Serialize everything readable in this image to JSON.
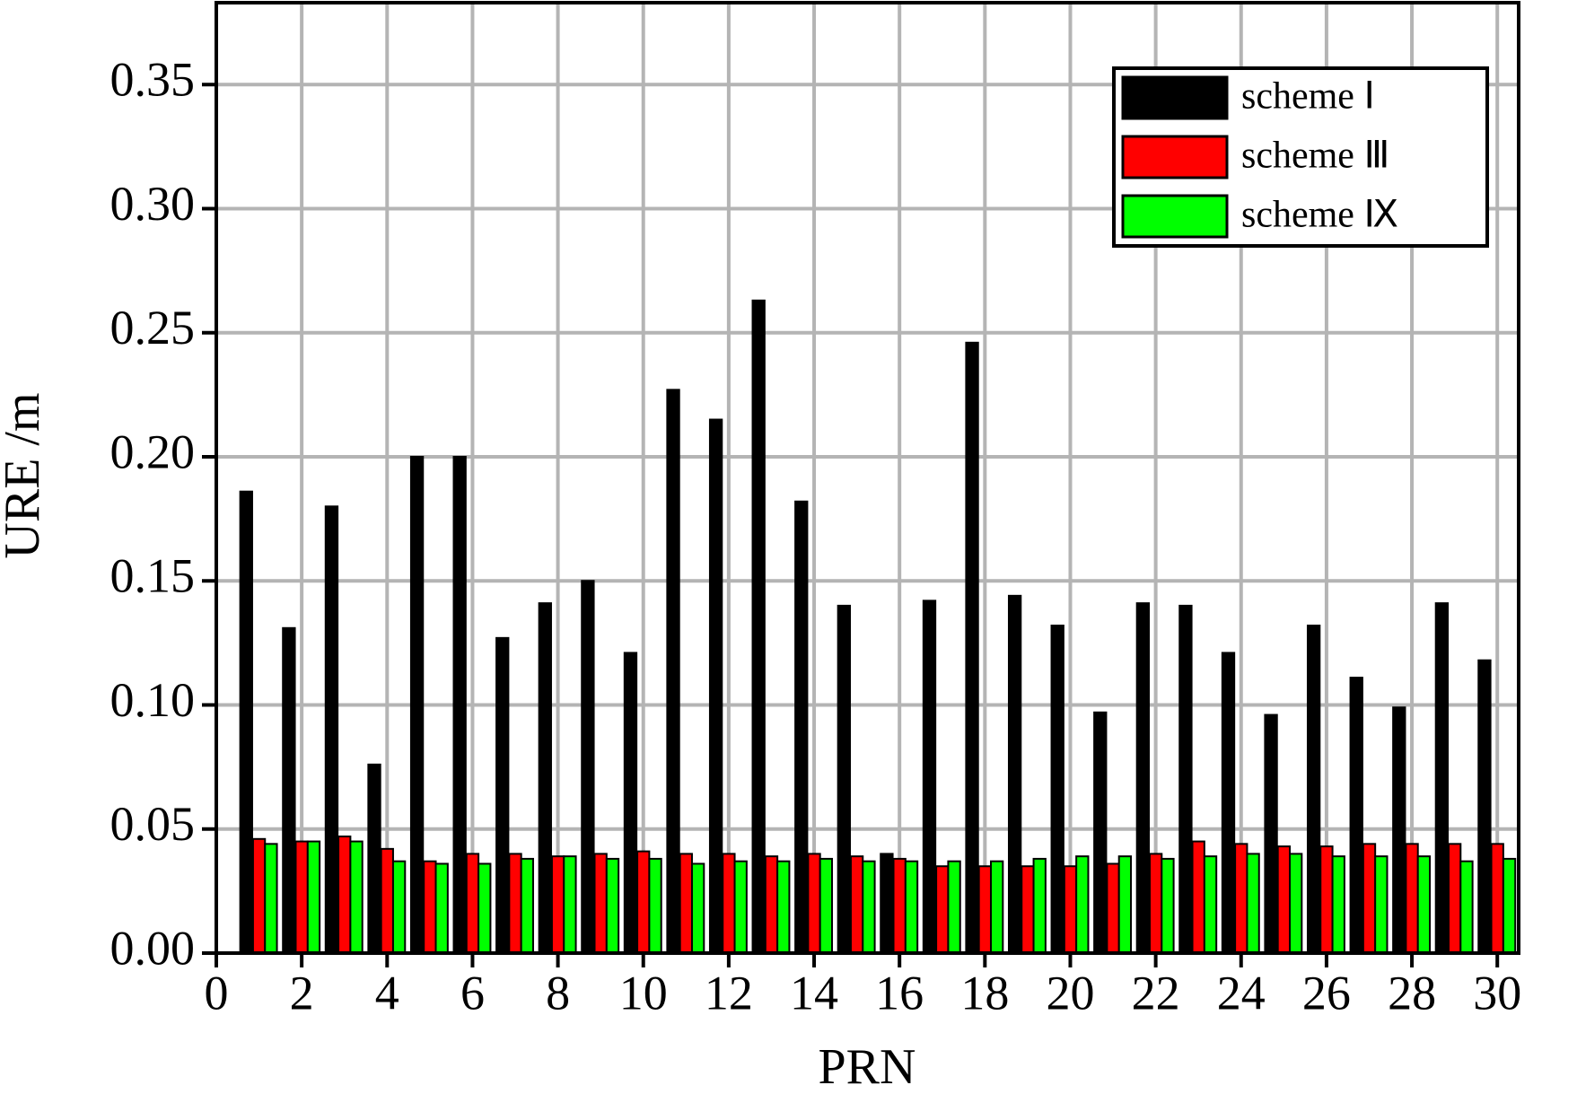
{
  "chart_data": {
    "type": "bar",
    "x_label": "PRN",
    "y_label": "URE /m",
    "categories": [
      1,
      2,
      3,
      4,
      5,
      6,
      7,
      8,
      9,
      10,
      11,
      12,
      13,
      14,
      15,
      16,
      17,
      18,
      19,
      20,
      21,
      22,
      23,
      24,
      25,
      26,
      27,
      28,
      29,
      30
    ],
    "series": [
      {
        "name": "scheme Ⅰ",
        "color": "#000000",
        "values": [
          0.186,
          0.131,
          0.18,
          0.076,
          0.2,
          0.2,
          0.127,
          0.141,
          0.15,
          0.121,
          0.227,
          0.215,
          0.263,
          0.182,
          0.14,
          0.04,
          0.142,
          0.246,
          0.144,
          0.132,
          0.097,
          0.141,
          0.14,
          0.121,
          0.096,
          0.132,
          0.111,
          0.099,
          0.141,
          0.118
        ]
      },
      {
        "name": "scheme Ⅲ",
        "color": "#ff0000",
        "values": [
          0.046,
          0.045,
          0.047,
          0.042,
          0.037,
          0.04,
          0.04,
          0.039,
          0.04,
          0.041,
          0.04,
          0.04,
          0.039,
          0.04,
          0.039,
          0.038,
          0.035,
          0.035,
          0.035,
          0.035,
          0.036,
          0.04,
          0.045,
          0.044,
          0.043,
          0.043,
          0.044,
          0.044,
          0.044,
          0.044
        ]
      },
      {
        "name": "scheme Ⅸ",
        "color": "#00ff00",
        "values": [
          0.044,
          0.045,
          0.045,
          0.037,
          0.036,
          0.036,
          0.038,
          0.039,
          0.038,
          0.038,
          0.036,
          0.037,
          0.037,
          0.038,
          0.037,
          0.037,
          0.037,
          0.037,
          0.038,
          0.039,
          0.039,
          0.038,
          0.039,
          0.04,
          0.04,
          0.039,
          0.039,
          0.039,
          0.037,
          0.038
        ]
      }
    ],
    "xlim": [
      0,
      30.5
    ],
    "xticks": [
      0,
      2,
      4,
      6,
      8,
      10,
      12,
      14,
      16,
      18,
      20,
      22,
      24,
      26,
      28,
      30
    ],
    "ylim": [
      0,
      0.383
    ],
    "yticks": [
      {
        "value": 0,
        "label": "0.00"
      },
      {
        "value": 0.05,
        "label": "0.05"
      },
      {
        "value": 0.1,
        "label": "0.10"
      },
      {
        "value": 0.15,
        "label": "0.15"
      },
      {
        "value": 0.2,
        "label": "0.20"
      },
      {
        "value": 0.25,
        "label": "0.25"
      },
      {
        "value": 0.3,
        "label": "0.30"
      },
      {
        "value": 0.35,
        "label": "0.35"
      }
    ],
    "grid": true,
    "legend": "upper-right"
  }
}
